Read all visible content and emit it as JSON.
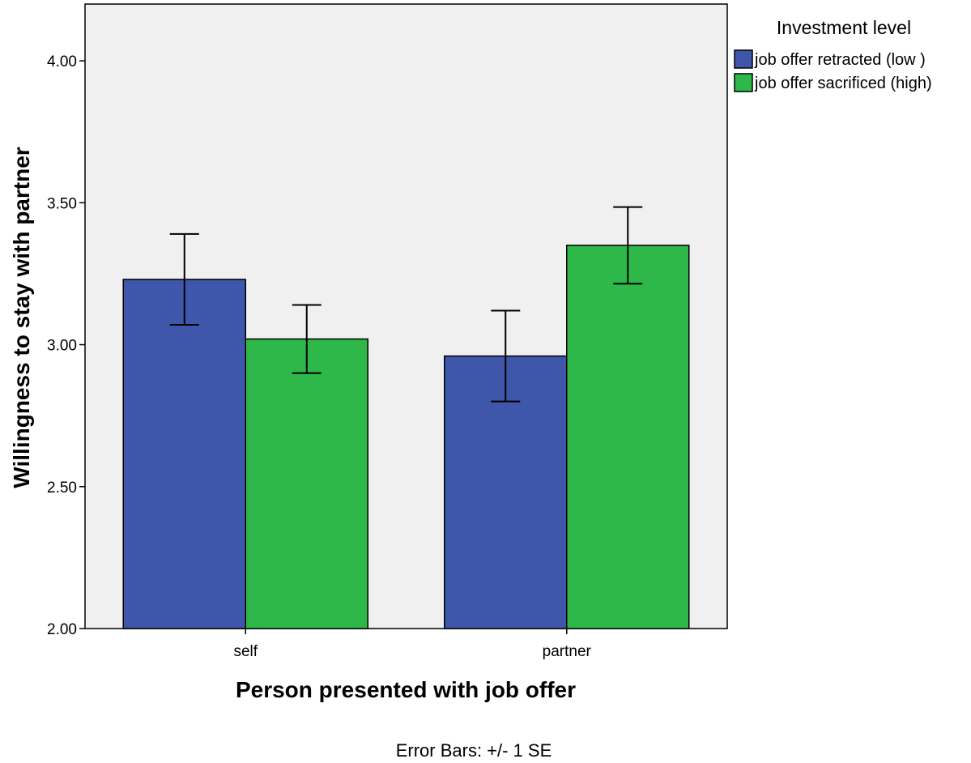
{
  "chart_data": {
    "type": "bar",
    "categories": [
      "self",
      "partner"
    ],
    "series": [
      {
        "name": "job offer retracted (low )",
        "color": "#3f57aa",
        "values": [
          3.23,
          2.96
        ],
        "se": [
          0.16,
          0.16
        ]
      },
      {
        "name": "job offer sacrificed (high)",
        "color": "#2fb84a",
        "values": [
          3.02,
          3.35
        ],
        "se": [
          0.12,
          0.135
        ]
      }
    ],
    "ylim": [
      2.0,
      4.2
    ],
    "yticks": [
      "2.00",
      "2.50",
      "3.00",
      "3.50",
      "4.00"
    ],
    "xlabel": "Person presented with job offer",
    "ylabel": "Willingness to stay with partner",
    "legend_title": "Investment level",
    "legend_position": "top-right",
    "note": "Error Bars: +/- 1 SE",
    "plot_background": "#f0f0f0"
  }
}
